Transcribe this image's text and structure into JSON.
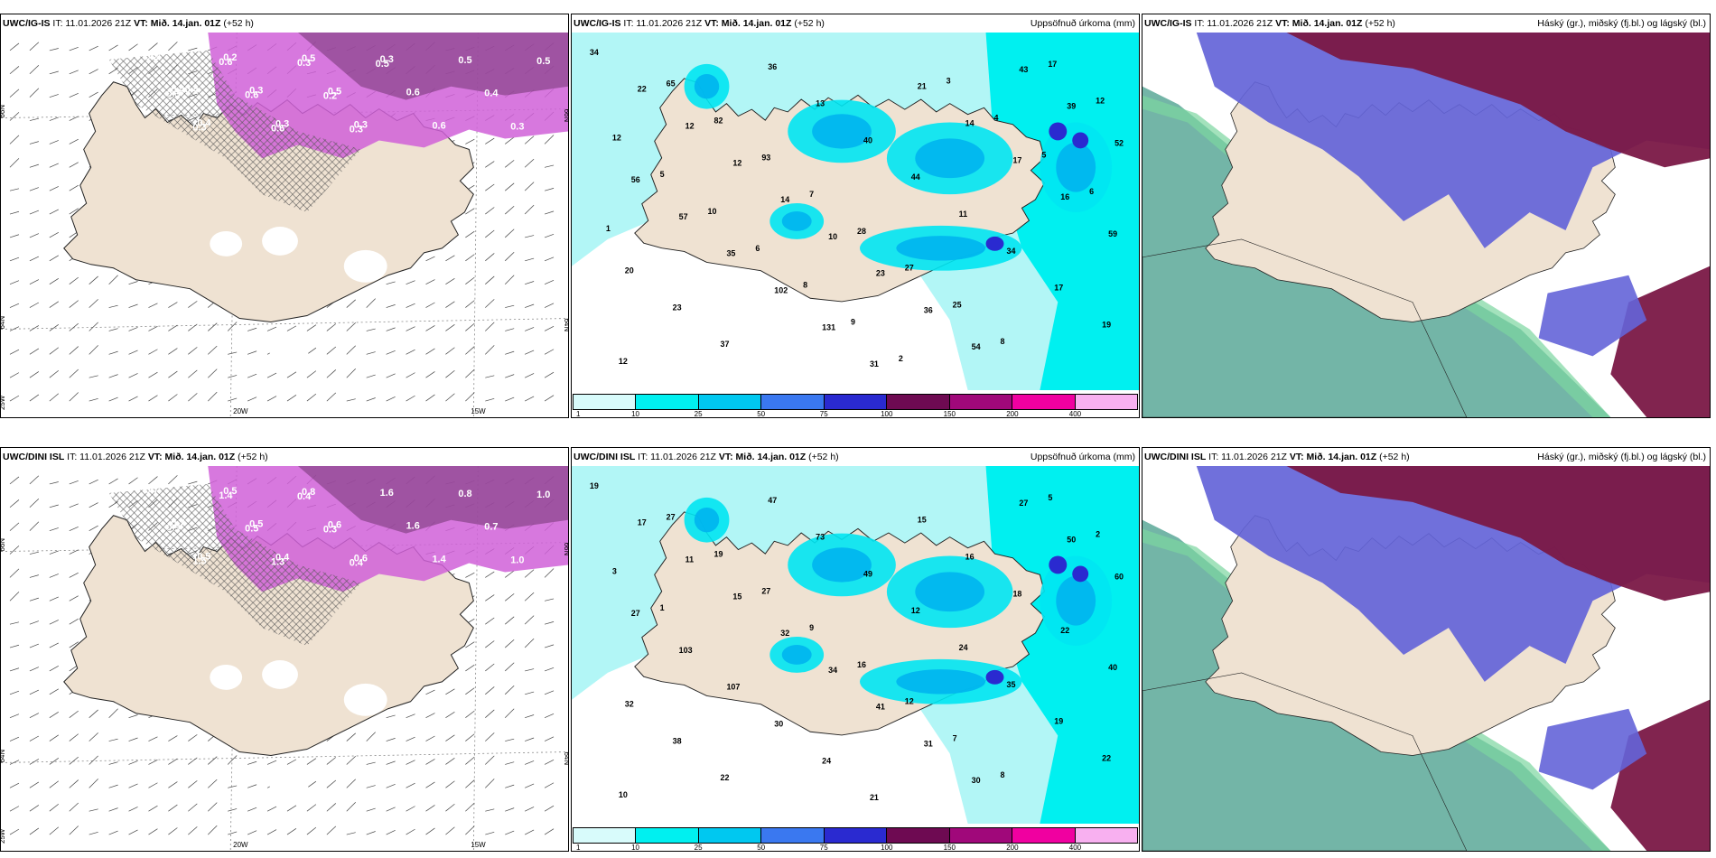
{
  "panels": [
    {
      "id": "p1",
      "model": "UWC/IG-IS",
      "it": "IT: 11.01.2026 21Z",
      "vt": "VT: Mið. 14.jan. 01Z",
      "lead": "(+52 h)",
      "right": "",
      "kind": "wind",
      "ticks": {
        "lat1": "66N",
        "lat2": "64N",
        "lon1": "20W",
        "lon2": "15W",
        "lon0": "25W",
        "latR1": "66N",
        "latR2": "64N"
      },
      "labels": [
        "0.2",
        "0.40.4",
        "0.4",
        "0.2",
        "0.3",
        "0.3",
        "0.5",
        "0.5",
        "0.3",
        "0.3",
        "0.6",
        "0.6",
        "0.5",
        "0.4",
        "0.3",
        "0.5",
        "0.3",
        "0.3",
        "0.6",
        "0.6",
        "0.6",
        "0.3",
        "0.2",
        "0.3",
        "0.5"
      ]
    },
    {
      "id": "p2",
      "model": "UWC/IG-IS",
      "it": "IT: 11.01.2026 21Z",
      "vt": "VT: Mið. 14.jan. 01Z",
      "lead": "(+52 h)",
      "right": "Uppsöfnuð úrkoma (mm)",
      "kind": "precip",
      "labels": [
        "34",
        "22",
        "12",
        "12",
        "14",
        "10",
        "23",
        "36",
        "54",
        "43",
        "39",
        "52",
        "56",
        "57",
        "35",
        "102",
        "131",
        "31",
        "21",
        "14",
        "17",
        "16",
        "59",
        "20",
        "23",
        "37",
        "36",
        "13",
        "40",
        "44",
        "11",
        "34",
        "17",
        "19",
        "12",
        "65",
        "82",
        "93",
        "7",
        "28",
        "27",
        "25",
        "8",
        "17",
        "12",
        "12",
        "5",
        "10",
        "6",
        "8",
        "9",
        "2",
        "3",
        "4",
        "5",
        "6",
        "1"
      ],
      "colorbar": {
        "ticks": [
          "1",
          "10",
          "25",
          "50",
          "75",
          "100",
          "150",
          "200",
          "400"
        ],
        "colors": [
          "#d8fbfb",
          "#00f0f0",
          "#00c8f0",
          "#3a78f0",
          "#2a2ad0",
          "#6e0a52",
          "#a0087a",
          "#f000a0",
          "#f8b0f0"
        ]
      }
    },
    {
      "id": "p3",
      "model": "UWC/IG-IS",
      "it": "IT: 11.01.2026 21Z",
      "vt": "VT: Mið. 14.jan. 01Z",
      "lead": "(+52 h)",
      "right": "Háský (gr.), miðský (fj.bl.) og lágský (bl.)",
      "kind": "cloud"
    },
    {
      "id": "p4",
      "model": "UWC/DINI ISL",
      "it": "IT: 11.01.2026 21Z",
      "vt": "VT: Mið. 14.jan. 01Z",
      "lead": "(+52 h)",
      "right": "",
      "kind": "wind",
      "ticks": {
        "lat1": "66N",
        "lat2": "64N",
        "lon1": "20W",
        "lon2": "15W",
        "lon0": "25W",
        "latR1": "66N",
        "latR2": "64N"
      },
      "labels": [
        "0.7",
        "0.7",
        "0.5",
        "0.5",
        "0.5",
        "0.4",
        "0.8",
        "0.6",
        "0.6",
        "1.6",
        "1.6",
        "1.4",
        "0.8",
        "0.7",
        "1.0",
        "1.0",
        "0.9",
        "1.5",
        "1.4",
        "0.5",
        "1.3",
        "0.4",
        "0.3",
        "0.4"
      ]
    },
    {
      "id": "p5",
      "model": "UWC/DINI ISL",
      "it": "IT: 11.01.2026 21Z",
      "vt": "VT: Mið. 14.jan. 01Z",
      "lead": "(+52 h)",
      "right": "Uppsöfnuð úrkoma (mm)",
      "kind": "precip",
      "labels": [
        "19",
        "17",
        "11",
        "15",
        "32",
        "34",
        "41",
        "31",
        "30",
        "27",
        "50",
        "60",
        "27",
        "103",
        "107",
        "30",
        "24",
        "21",
        "15",
        "16",
        "18",
        "22",
        "40",
        "32",
        "38",
        "22",
        "47",
        "73",
        "49",
        "12",
        "24",
        "35",
        "19",
        "22",
        "10",
        "27",
        "19",
        "27",
        "9",
        "16",
        "12",
        "7",
        "8",
        "5",
        "2",
        "3",
        "1"
      ],
      "colorbar": {
        "ticks": [
          "1",
          "10",
          "25",
          "50",
          "75",
          "100",
          "150",
          "200",
          "400"
        ],
        "colors": [
          "#d8fbfb",
          "#00f0f0",
          "#00c8f0",
          "#3a78f0",
          "#2a2ad0",
          "#6e0a52",
          "#a0087a",
          "#f000a0",
          "#f8b0f0"
        ]
      }
    },
    {
      "id": "p6",
      "model": "UWC/DINI ISL",
      "it": "IT: 11.01.2026 21Z",
      "vt": "VT: Mið. 14.jan. 01Z",
      "lead": "(+52 h)",
      "right": "Háský (gr.), miðský (fj.bl.) og lágský (bl.)",
      "kind": "cloud"
    }
  ],
  "colors": {
    "land": "#efe2d2",
    "sea": "#ffffff",
    "precipSea": "#b2f6f6",
    "snowPink": "#d060d8",
    "snowDark": "#7a3a7a",
    "hiCloud": "#5aa898",
    "midCloud": "#6464d8",
    "lowCloud": "#7a1846"
  }
}
